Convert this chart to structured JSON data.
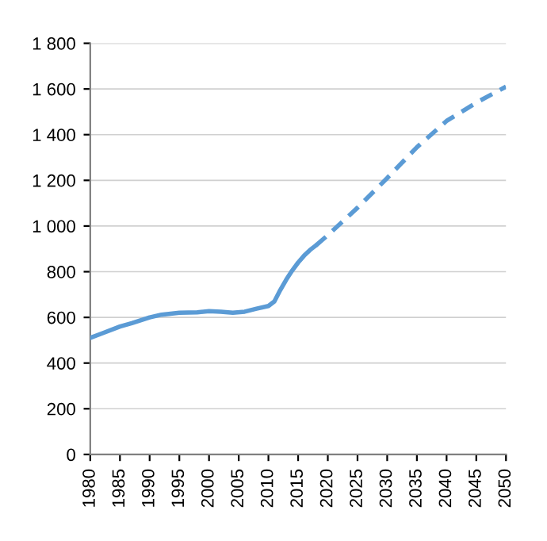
{
  "chart_data": {
    "type": "line",
    "series": [
      {
        "color": "#5b9bd5",
        "line_style": "solid",
        "x": [
          1980,
          1982,
          1985,
          1987,
          1990,
          1992,
          1995,
          1998,
          2000,
          2002,
          2004,
          2006,
          2008,
          2010,
          2011,
          2012,
          2013,
          2014,
          2015,
          2016,
          2017,
          2018
        ],
        "values": [
          510,
          530,
          560,
          575,
          600,
          612,
          620,
          622,
          627,
          625,
          620,
          625,
          638,
          650,
          670,
          720,
          765,
          805,
          840,
          870,
          895,
          915
        ]
      },
      {
        "color": "#5b9bd5",
        "line_style": "dashed",
        "x": [
          2018,
          2020,
          2025,
          2030,
          2035,
          2040,
          2045,
          2050
        ],
        "values": [
          915,
          960,
          1080,
          1210,
          1345,
          1460,
          1540,
          1610
        ]
      }
    ],
    "xlim": [
      1980,
      2050
    ],
    "xticks": [
      1980,
      1985,
      1990,
      1995,
      2000,
      2005,
      2010,
      2015,
      2020,
      2025,
      2030,
      2035,
      2040,
      2045,
      2050
    ],
    "ylim": [
      0,
      1800
    ],
    "yticks": [
      0,
      200,
      400,
      600,
      800,
      {
        "value": 1000,
        "label": "1 000"
      },
      {
        "value": 1200,
        "label": "1 200"
      },
      {
        "value": 1400,
        "label": "1 400"
      },
      {
        "value": 1600,
        "label": "1 600"
      },
      {
        "value": 1800,
        "label": "1 800"
      }
    ],
    "grid": "y"
  }
}
